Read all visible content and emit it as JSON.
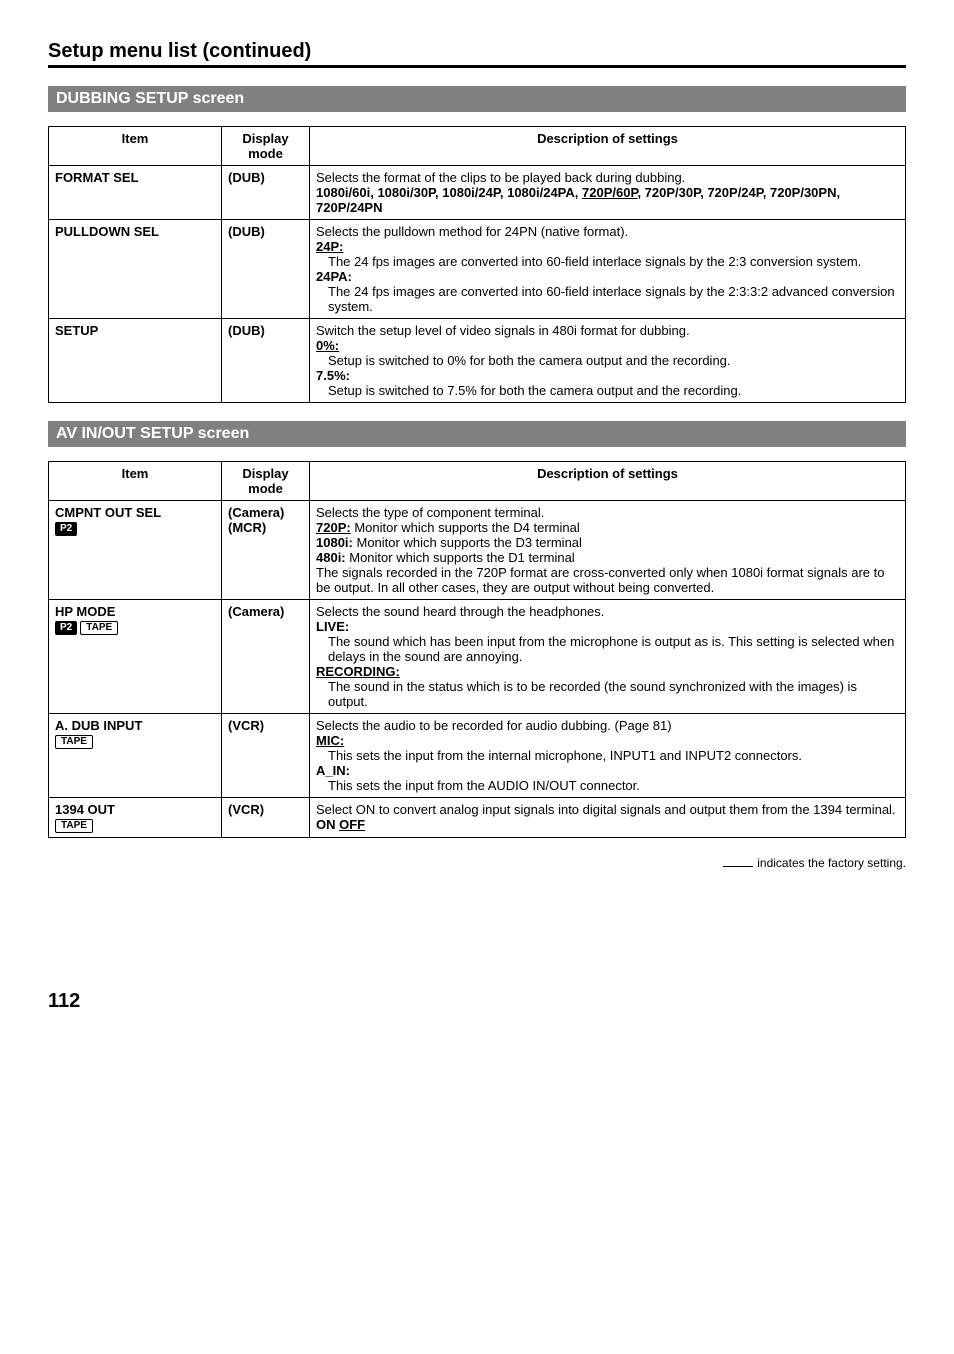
{
  "page_title": "Setup menu list (continued)",
  "section1_title": "DUBBING SETUP screen",
  "section2_title": "AV IN/OUT SETUP screen",
  "col_headers": {
    "item": "Item",
    "mode": "Display mode",
    "desc": "Description of settings"
  },
  "dubbing": {
    "rows": [
      {
        "item": "FORMAT SEL",
        "mode": "(DUB)",
        "lines": [
          {
            "text": "Selects the format of the clips to be played back during dubbing."
          },
          {
            "bold": true,
            "parts": [
              {
                "text": "1080i/60i, 1080i/30P, 1080i/24P, 1080i/24PA, "
              },
              {
                "text": "720P/60P",
                "underline": true
              },
              {
                "text": ", 720P/30P, 720P/24P, 720P/30PN, 720P/24PN"
              }
            ]
          }
        ]
      },
      {
        "item": "PULLDOWN SEL",
        "mode": "(DUB)",
        "lines": [
          {
            "text": "Selects the pulldown method for 24PN (native format)."
          },
          {
            "bold": true,
            "underline": true,
            "text": "24P:"
          },
          {
            "indent": true,
            "text": "The 24 fps images are converted into 60-field interlace signals by the 2:3 conversion system."
          },
          {
            "bold": true,
            "text": "24PA:"
          },
          {
            "indent": true,
            "text": "The 24 fps images are converted into 60-field interlace signals by the 2:3:3:2 advanced conversion system."
          }
        ]
      },
      {
        "item": "SETUP",
        "mode": "(DUB)",
        "lines": [
          {
            "text": "Switch the setup level of video signals in 480i format for dubbing."
          },
          {
            "bold": true,
            "underline": true,
            "text": "0%:"
          },
          {
            "indent": true,
            "text": "Setup is switched to 0% for both the camera output and the recording."
          },
          {
            "bold": true,
            "text": "7.5%:"
          },
          {
            "indent": true,
            "text": "Setup is switched to 7.5% for both the camera output and the recording."
          }
        ]
      }
    ]
  },
  "avinout": {
    "rows": [
      {
        "item": "CMPNT OUT SEL",
        "badges": [
          {
            "type": "solid",
            "text": "P2"
          }
        ],
        "mode": "(Camera)\n(MCR)",
        "lines": [
          {
            "text": "Selects the type of component terminal."
          },
          {
            "parts": [
              {
                "bold": true,
                "underline": true,
                "text": "720P:"
              },
              {
                "text": " Monitor which supports the D4 terminal"
              }
            ]
          },
          {
            "parts": [
              {
                "bold": true,
                "text": "1080i:"
              },
              {
                "text": " Monitor which supports the D3 terminal"
              }
            ]
          },
          {
            "parts": [
              {
                "bold": true,
                "text": "480i:"
              },
              {
                "text": "   Monitor which supports the D1 terminal"
              }
            ]
          },
          {
            "text": "The signals recorded in the 720P format are cross-converted only when 1080i format signals are to be output. In all other cases, they are output without being converted."
          }
        ]
      },
      {
        "item": "HP MODE",
        "badges": [
          {
            "type": "solid",
            "text": "P2"
          },
          {
            "type": "outline",
            "text": "TAPE"
          }
        ],
        "mode": "(Camera)",
        "lines": [
          {
            "text": "Selects the sound heard through the headphones."
          },
          {
            "bold": true,
            "text": "LIVE:"
          },
          {
            "indent": true,
            "text": "The sound which has been input from the microphone is output as is. This setting is selected when delays in the sound are annoying."
          },
          {
            "bold": true,
            "underline": true,
            "text": "RECORDING:"
          },
          {
            "indent": true,
            "text": "The sound in the status which is to be recorded (the sound synchronized with the images) is output."
          }
        ]
      },
      {
        "item": "A. DUB INPUT",
        "badges": [
          {
            "type": "outline",
            "text": "TAPE"
          }
        ],
        "mode": "(VCR)",
        "lines": [
          {
            "text": "Selects the audio to be recorded for audio dubbing. (Page 81)"
          },
          {
            "bold": true,
            "underline": true,
            "text": "MIC:"
          },
          {
            "indent": true,
            "text": "This sets the input from the internal microphone, INPUT1 and INPUT2 connectors."
          },
          {
            "bold": true,
            "text": "A_IN:"
          },
          {
            "indent": true,
            "text": "This sets the input from the AUDIO IN/OUT connector."
          }
        ]
      },
      {
        "item": "1394 OUT",
        "badges": [
          {
            "type": "outline",
            "text": "TAPE"
          }
        ],
        "mode": "(VCR)",
        "lines": [
          {
            "text": "Select ON to convert analog input signals into digital signals and output them from the 1394 terminal."
          },
          {
            "bold": true,
            "parts": [
              {
                "text": "ON "
              },
              {
                "underline": true,
                "text": "OFF"
              }
            ]
          }
        ]
      }
    ]
  },
  "footnote": "indicates the factory setting.",
  "page_number": "112"
}
